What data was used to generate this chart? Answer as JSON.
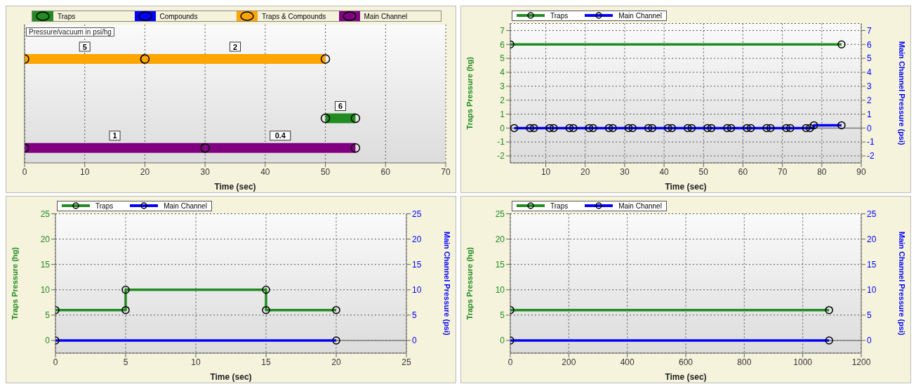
{
  "chart_data": [
    {
      "type": "bar",
      "orientation": "horizontal",
      "xlabel": "Time (sec)",
      "ylabel": "Pressure/vacuum in psi/hg",
      "categories": [
        null,
        null,
        null,
        null
      ],
      "xlim": [
        0,
        70
      ],
      "xticks": [
        0,
        10,
        20,
        30,
        40,
        50,
        60,
        70
      ],
      "grid": "x",
      "legend": "top",
      "marker": "circle",
      "tick_labels": "x",
      "series": [
        {
          "name": "Traps",
          "color": "#228b22",
          "values": [
            null,
            null,
            5,
            null
          ],
          "base": [
            null,
            null,
            50,
            null
          ]
        },
        {
          "name": "Compounds",
          "color": "#0000ff",
          "values": [
            null,
            null,
            null,
            null
          ]
        },
        {
          "name": "Traps & Compounds",
          "color": "#ffa500",
          "values": [
            20,
            null,
            null,
            null
          ],
          "base": [
            0,
            null,
            null,
            null
          ]
        },
        {
          "color": "#ffa500",
          "values": [
            30,
            null,
            null,
            null
          ],
          "base": [
            20,
            null,
            null,
            null
          ]
        },
        {
          "name": "Main Channel",
          "color": "#800080",
          "values": [
            null,
            null,
            null,
            30
          ],
          "base": [
            null,
            null,
            null,
            0
          ]
        },
        {
          "color": "#800080",
          "values": [
            null,
            null,
            null,
            25
          ],
          "base": [
            null,
            null,
            null,
            30
          ]
        }
      ],
      "annotations": [
        {
          "text": "6",
          "x": 52.5
        },
        {
          "text": "5",
          "x": 10
        },
        {
          "text": "2",
          "x": 35
        },
        {
          "text": "1",
          "x": 15
        },
        {
          "text": "0.4",
          "x": 42.5
        }
      ]
    },
    {
      "type": "step",
      "xlabel": "Time (sec)",
      "ylabel": "Traps Pressure (hg)",
      "y2label": "Main Channel Pressure (psi)",
      "xlim": [
        1,
        90
      ],
      "xticks": [
        10,
        20,
        30,
        40,
        50,
        60,
        70,
        80,
        90
      ],
      "ylim": [
        -2.5,
        7.5
      ],
      "yticks": [
        -2,
        -1,
        0,
        1,
        2,
        3,
        4,
        5,
        6,
        7
      ],
      "y2lim": [
        -2.5,
        7.5
      ],
      "y2ticks": [
        -2,
        -1,
        0,
        1,
        2,
        3,
        4,
        5,
        6,
        7
      ],
      "grid": true,
      "legend": "top left",
      "marker": "circle",
      "ref_lines": [
        {
          "axis": "y",
          "value": 0,
          "color": "#808080"
        }
      ],
      "series": [
        {
          "name": "Traps",
          "color": "#228b22",
          "x": [
            1,
            85
          ],
          "values": [
            6,
            6
          ]
        },
        {
          "name": "Main Channel",
          "color": "#0000ff",
          "axis": "y2",
          "x": [
            2,
            6,
            7,
            11,
            12,
            16,
            17,
            21,
            22,
            26,
            27,
            31,
            32,
            36,
            37,
            41,
            42,
            46,
            47,
            51,
            52,
            56,
            57,
            61,
            62,
            66,
            67,
            71,
            72,
            76,
            77,
            78,
            85
          ],
          "values": [
            0,
            0,
            0,
            0,
            0,
            0,
            0,
            0,
            0,
            0,
            0,
            0,
            0,
            0,
            0,
            0,
            0,
            0,
            0,
            0,
            0,
            0,
            0,
            0,
            0,
            0,
            0,
            0,
            0,
            0,
            0,
            0.2,
            0.2
          ]
        }
      ]
    },
    {
      "type": "step",
      "xlabel": "Time (sec)",
      "ylabel": "Traps Pressure (hg)",
      "y2label": "Main Channel Pressure (psi)",
      "xlim": [
        0,
        25
      ],
      "xticks": [
        0,
        5,
        10,
        15,
        20,
        25
      ],
      "ylim": [
        -2.5,
        25
      ],
      "yticks": [
        0,
        5,
        10,
        15,
        20,
        25
      ],
      "y2lim": [
        -2.5,
        25
      ],
      "y2ticks": [
        0,
        5,
        10,
        15,
        20,
        25
      ],
      "grid": true,
      "legend": "top left",
      "marker": "circle",
      "ref_lines": [
        {
          "axis": "y",
          "value": 0,
          "color": "#808080"
        }
      ],
      "series": [
        {
          "name": "Traps",
          "color": "#228b22",
          "x": [
            0,
            5,
            5,
            15,
            15,
            20
          ],
          "values": [
            6,
            6,
            10,
            10,
            6,
            6
          ]
        },
        {
          "name": "Main Channel",
          "color": "#0000ff",
          "axis": "y2",
          "x": [
            0,
            20
          ],
          "values": [
            0,
            0
          ]
        }
      ]
    },
    {
      "type": "step",
      "xlabel": "Time (sec)",
      "ylabel": "Traps Pressure (hg)",
      "y2label": "Main Channel Pressure (psi)",
      "xlim": [
        0,
        1200
      ],
      "xticks": [
        0,
        200,
        400,
        600,
        800,
        1000,
        1200
      ],
      "ylim": [
        -2.5,
        25
      ],
      "yticks": [
        0,
        5,
        10,
        15,
        20,
        25
      ],
      "y2lim": [
        -2.5,
        25
      ],
      "y2ticks": [
        0,
        5,
        10,
        15,
        20,
        25
      ],
      "grid": true,
      "legend": "top left",
      "marker": "circle",
      "ref_lines": [
        {
          "axis": "y",
          "value": 0,
          "color": "#808080"
        }
      ],
      "series": [
        {
          "name": "Traps",
          "color": "#228b22",
          "x": [
            0,
            1090
          ],
          "values": [
            6,
            6
          ]
        },
        {
          "name": "Main Channel",
          "color": "#0000ff",
          "axis": "y2",
          "x": [
            0,
            1090
          ],
          "values": [
            0,
            0
          ]
        }
      ]
    }
  ]
}
